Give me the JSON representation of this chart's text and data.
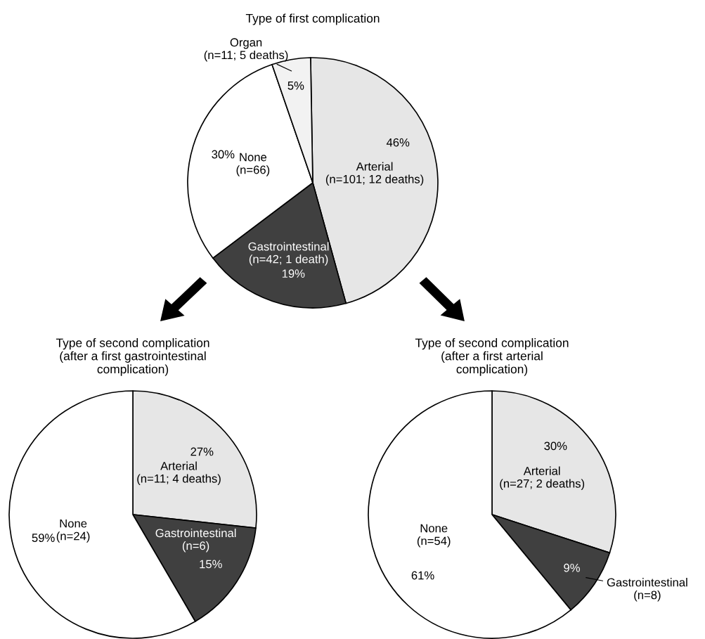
{
  "chart_data": [
    {
      "type": "pie",
      "title": "Type of first complication",
      "categories": [
        "Arterial\n(n=101; 12 deaths)",
        "Gastrointestinal\n(n=42; 1 death)",
        "None\n(n=66)",
        "Organ\n(n=11; 5 deaths)"
      ],
      "values": [
        46,
        19,
        30,
        5
      ],
      "value_labels": [
        "46%",
        "19%",
        "30%",
        "5%"
      ],
      "colors": [
        "#e6e6e6",
        "#404040",
        "#ffffff",
        "#f2f2f2"
      ]
    },
    {
      "type": "pie",
      "title": "Type of second complication\n(after a first gastrointestinal\ncomplication)",
      "categories": [
        "Arterial\n(n=11; 4 deaths)",
        "Gastrointestinal\n(n=6)",
        "None\n(n=24)"
      ],
      "values": [
        27,
        15,
        59
      ],
      "value_labels": [
        "27%",
        "15%",
        "59%"
      ],
      "colors": [
        "#e6e6e6",
        "#404040",
        "#ffffff"
      ]
    },
    {
      "type": "pie",
      "title": "Type of second complication\n(after a first arterial\ncomplication)",
      "categories": [
        "Arterial\n(n=27; 2 deaths)",
        "Gastrointestinal\n(n=8)",
        "None\n(n=54)"
      ],
      "values": [
        30,
        9,
        61
      ],
      "value_labels": [
        "30%",
        "9%",
        "61%"
      ],
      "colors": [
        "#e6e6e6",
        "#404040",
        "#ffffff"
      ]
    }
  ]
}
